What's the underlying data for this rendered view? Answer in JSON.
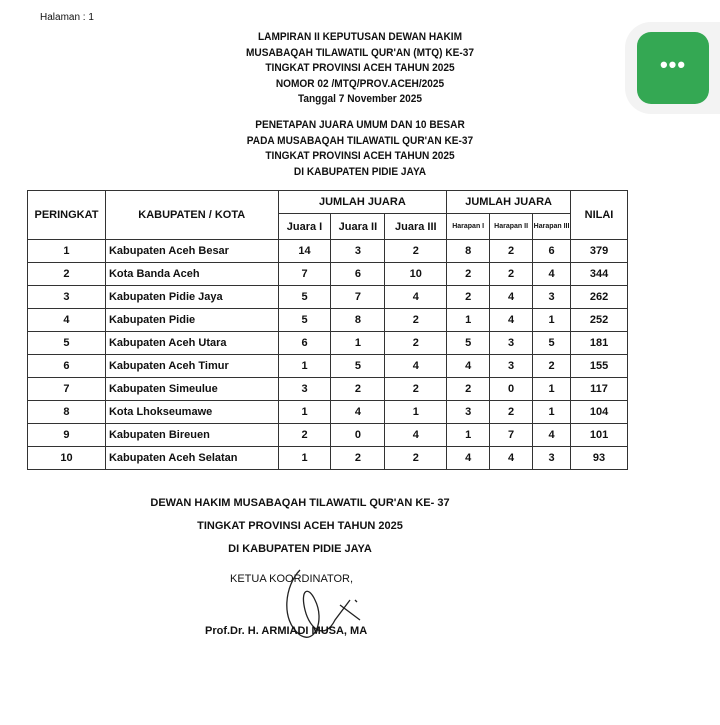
{
  "page_label": "Halaman : 1",
  "header_lines": [
    "LAMPIRAN II KEPUTUSAN DEWAN HAKIM",
    "MUSABAQAH TILAWATIL QUR'AN (MTQ) KE-37",
    "TINGKAT PROVINSI ACEH TAHUN 2025",
    "NOMOR 02 /MTQ/PROV.ACEH/2025",
    "Tanggal 7 November 2025"
  ],
  "title_lines": [
    "PENETAPAN JUARA UMUM DAN 10 BESAR",
    "PADA MUSABAQAH TILAWATIL QUR'AN KE-37",
    "TINGKAT PROVINSI ACEH TAHUN 2025",
    "DI KABUPATEN PIDIE JAYA"
  ],
  "menu_button": {
    "icon": "more-horizontal-icon",
    "label": "•••",
    "color": "#34a853"
  },
  "table": {
    "headers": {
      "rank": "PERINGKAT",
      "region": "KABUPATEN / KOTA",
      "group1": "JUMLAH JUARA",
      "group2": "JUMLAH JUARA",
      "score": "NILAI",
      "sub": [
        "Juara I",
        "Juara II",
        "Juara III",
        "Harapan I",
        "Harapan II",
        "Harapan III"
      ]
    },
    "rows": [
      [
        "1",
        "Kabupaten Aceh Besar",
        "14",
        "3",
        "2",
        "8",
        "2",
        "6",
        "379"
      ],
      [
        "2",
        "Kota Banda Aceh",
        "7",
        "6",
        "10",
        "2",
        "2",
        "4",
        "344"
      ],
      [
        "3",
        "Kabupaten Pidie Jaya",
        "5",
        "7",
        "4",
        "2",
        "4",
        "3",
        "262"
      ],
      [
        "4",
        "Kabupaten Pidie",
        "5",
        "8",
        "2",
        "1",
        "4",
        "1",
        "252"
      ],
      [
        "5",
        "Kabupaten Aceh Utara",
        "6",
        "1",
        "2",
        "5",
        "3",
        "5",
        "181"
      ],
      [
        "6",
        "Kabupaten Aceh Timur",
        "1",
        "5",
        "4",
        "4",
        "3",
        "2",
        "155"
      ],
      [
        "7",
        "Kabupaten Simeulue",
        "3",
        "2",
        "2",
        "2",
        "0",
        "1",
        "117"
      ],
      [
        "8",
        "Kota Lhokseumawe",
        "1",
        "4",
        "1",
        "3",
        "2",
        "1",
        "104"
      ],
      [
        "9",
        "Kabupaten Bireuen",
        "2",
        "0",
        "4",
        "1",
        "7",
        "4",
        "101"
      ],
      [
        "10",
        "Kabupaten Aceh Selatan",
        "1",
        "2",
        "2",
        "4",
        "4",
        "3",
        "93"
      ]
    ]
  },
  "footer_lines": [
    "DEWAN HAKIM MUSABAQAH TILAWATIL QUR'AN KE- 37",
    "TINGKAT PROVINSI ACEH TAHUN 2025",
    "DI KABUPATEN PIDIE JAYA"
  ],
  "coordinator_label": "KETUA KOORDINATOR,",
  "signatory": "Prof.Dr. H. ARMIADI MUSA, MA"
}
